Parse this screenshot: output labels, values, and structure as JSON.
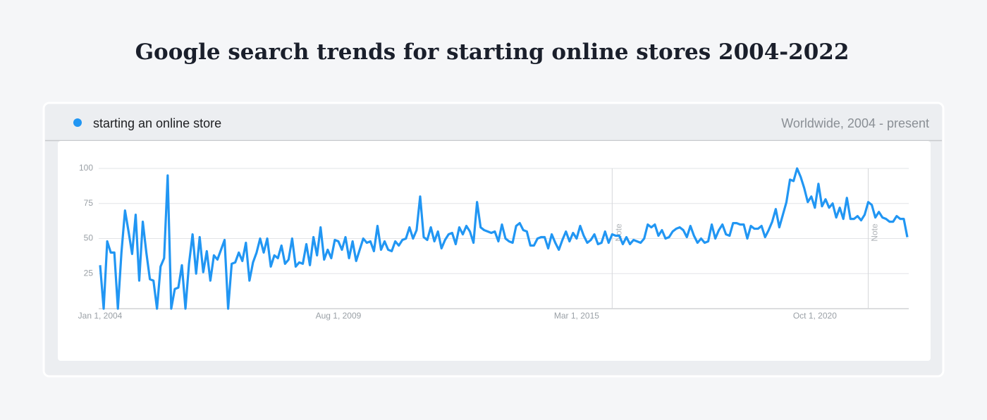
{
  "chart_data": {
    "type": "line",
    "title": "Google search trends for starting online stores 2004-2022",
    "subtitle": "Worldwide, 2004 - present",
    "categories": [
      "Jan 1, 2004",
      null,
      null,
      null,
      null,
      null,
      null,
      null,
      null,
      null,
      null,
      null,
      null,
      null,
      null,
      null,
      null,
      null,
      null,
      null,
      null,
      null,
      null,
      null,
      null,
      null,
      null,
      null,
      null,
      null,
      null,
      null,
      null,
      null,
      null,
      null,
      null,
      null,
      null,
      null,
      null,
      null,
      null,
      null,
      null,
      null,
      null,
      null,
      null,
      null,
      null,
      null,
      null,
      null,
      null,
      null,
      null,
      null,
      null,
      null,
      null,
      null,
      null,
      null,
      null,
      null,
      null,
      "Aug 1, 2009",
      null,
      null,
      null,
      null,
      null,
      null,
      null,
      null,
      null,
      null,
      null,
      null,
      null,
      null,
      null,
      null,
      null,
      null,
      null,
      null,
      null,
      null,
      null,
      null,
      null,
      null,
      null,
      null,
      null,
      null,
      null,
      null,
      null,
      null,
      null,
      null,
      null,
      null,
      null,
      null,
      null,
      null,
      null,
      null,
      null,
      null,
      null,
      null,
      null,
      null,
      null,
      null,
      null,
      null,
      null,
      null,
      null,
      null,
      null,
      null,
      null,
      null,
      null,
      null,
      null,
      null,
      "Mar 1, 2015",
      null,
      null,
      null,
      null,
      null,
      null,
      null,
      null,
      null,
      null,
      null,
      null,
      null,
      null,
      null,
      null,
      null,
      null,
      null,
      null,
      null,
      null,
      null,
      null,
      null,
      null,
      null,
      null,
      null,
      null,
      null,
      null,
      null,
      null,
      null,
      null,
      null,
      null,
      null,
      null,
      null,
      null,
      null,
      null,
      null,
      null,
      null,
      null,
      null,
      null,
      null,
      null,
      null,
      null,
      null,
      null,
      null,
      null,
      null,
      null,
      null,
      null,
      null,
      null,
      null,
      null,
      "Oct 1, 2020",
      null,
      null,
      null,
      null,
      null,
      null,
      null,
      null,
      null,
      null,
      null,
      null,
      null,
      null,
      null,
      null,
      null,
      null,
      null,
      null,
      null,
      null,
      null,
      null,
      null,
      null
    ],
    "series": [
      {
        "name": "starting an online store",
        "color": "#2196f3",
        "values": [
          31,
          0,
          48,
          40,
          40,
          0,
          40,
          70,
          55,
          39,
          67,
          20,
          62,
          40,
          21,
          20,
          0,
          30,
          36,
          95,
          0,
          14,
          15,
          31,
          0,
          32,
          53,
          25,
          51,
          26,
          41,
          20,
          38,
          35,
          42,
          49,
          0,
          32,
          33,
          40,
          34,
          47,
          20,
          33,
          40,
          50,
          40,
          50,
          30,
          38,
          36,
          45,
          32,
          35,
          50,
          30,
          33,
          32,
          46,
          31,
          51,
          38,
          58,
          35,
          42,
          36,
          49,
          48,
          42,
          51,
          36,
          48,
          34,
          42,
          50,
          47,
          48,
          41,
          59,
          42,
          48,
          42,
          41,
          48,
          45,
          49,
          50,
          58,
          50,
          56,
          80,
          51,
          49,
          58,
          48,
          55,
          43,
          49,
          53,
          54,
          46,
          58,
          53,
          59,
          55,
          47,
          76,
          58,
          56,
          55,
          54,
          55,
          48,
          60,
          50,
          48,
          47,
          59,
          61,
          56,
          55,
          45,
          45,
          50,
          51,
          51,
          43,
          53,
          47,
          42,
          49,
          55,
          48,
          54,
          50,
          59,
          52,
          47,
          49,
          53,
          46,
          47,
          55,
          47,
          53,
          52,
          52,
          46,
          51,
          46,
          49,
          48,
          47,
          50,
          60,
          58,
          60,
          52,
          56,
          50,
          51,
          55,
          57,
          58,
          56,
          51,
          59,
          52,
          47,
          50,
          47,
          48,
          60,
          50,
          56,
          60,
          53,
          52,
          61,
          61,
          60,
          60,
          50,
          59,
          57,
          57,
          59,
          51,
          56,
          62,
          71,
          58,
          67,
          76,
          92,
          91,
          100,
          94,
          86,
          76,
          80,
          72,
          89,
          73,
          78,
          72,
          75,
          65,
          72,
          64,
          79,
          64,
          64,
          66,
          63,
          67,
          76,
          74,
          65,
          69,
          65,
          64,
          62,
          62,
          66,
          64,
          64,
          51
        ]
      }
    ],
    "ylim": [
      0,
      100
    ],
    "yticks": [
      25,
      50,
      75,
      100
    ],
    "grid": true,
    "annotations": [
      {
        "label": "Note",
        "x": 144
      },
      {
        "label": "Note",
        "x": 216
      }
    ]
  }
}
